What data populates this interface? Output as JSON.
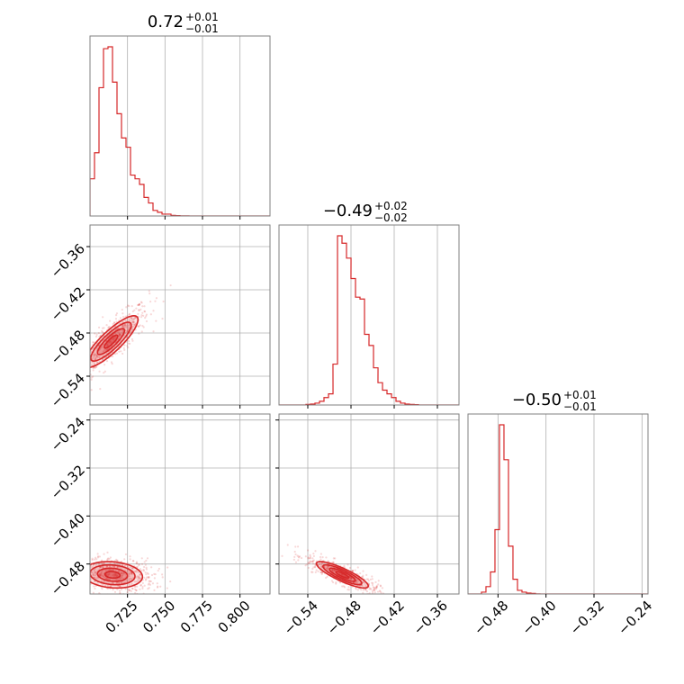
{
  "chart_data": {
    "type": "corner",
    "color": "#d62728",
    "grid": true,
    "parameters": [
      {
        "range": [
          0.7,
          0.82
        ],
        "ticks": [
          0.725,
          0.75,
          0.775,
          0.8
        ],
        "tick_labels": [
          "0.725",
          "0.750",
          "0.775",
          "0.800"
        ],
        "title": {
          "value": "0.72",
          "plus": "+0.01",
          "minus": "−0.01"
        },
        "hist": {
          "x": [
            0.7015,
            0.7045,
            0.7075,
            0.7105,
            0.7135,
            0.7165,
            0.7195,
            0.7225,
            0.7255,
            0.7285,
            0.7315,
            0.7345,
            0.7375,
            0.7405,
            0.7435,
            0.7465,
            0.7495,
            0.7525,
            0.7555,
            0.7585,
            0.7615,
            0.7645,
            0.7675,
            0.7705,
            0.7735,
            0.7765,
            0.7795,
            0.7825,
            0.7855,
            0.7885,
            0.7915,
            0.7945,
            0.7975,
            0.8005,
            0.8035,
            0.8065,
            0.8095,
            0.8125,
            0.8155,
            0.8185
          ],
          "counts": [
            0.2,
            0.34,
            0.69,
            0.9,
            0.91,
            0.72,
            0.55,
            0.42,
            0.37,
            0.22,
            0.2,
            0.17,
            0.1,
            0.07,
            0.03,
            0.02,
            0.01,
            0.01,
            0.003,
            0.002,
            0.001,
            0.001,
            0,
            0,
            0,
            0,
            0,
            0,
            0,
            0,
            0,
            0,
            0,
            0,
            0,
            0,
            0,
            0,
            0,
            0
          ]
        }
      },
      {
        "range": [
          -0.58,
          -0.33
        ],
        "ticks": [
          -0.54,
          -0.48,
          -0.42,
          -0.36
        ],
        "tick_labels": [
          "−0.54",
          "−0.48",
          "−0.42",
          "−0.36"
        ],
        "title": {
          "value": "−0.49",
          "plus": "+0.02",
          "minus": "−0.02"
        },
        "hist": {
          "x": [
            -0.5769,
            -0.5706,
            -0.5644,
            -0.5581,
            -0.5519,
            -0.5456,
            -0.5394,
            -0.5331,
            -0.5269,
            -0.5206,
            -0.5144,
            -0.5081,
            -0.5019,
            -0.4956,
            -0.4894,
            -0.4831,
            -0.4769,
            -0.4706,
            -0.4644,
            -0.4581,
            -0.4519,
            -0.4456,
            -0.4394,
            -0.4331,
            -0.4269,
            -0.4206,
            -0.4144,
            -0.4081,
            -0.4019,
            -0.3956,
            -0.3894,
            -0.3831,
            -0.3769,
            -0.3706,
            -0.3644,
            -0.3581,
            -0.3519,
            -0.3456,
            -0.3394,
            -0.3331
          ],
          "counts": [
            0,
            0,
            0,
            0,
            0,
            0,
            0.003,
            0.005,
            0.01,
            0.02,
            0.04,
            0.06,
            0.22,
            0.91,
            0.87,
            0.79,
            0.68,
            0.58,
            0.57,
            0.38,
            0.32,
            0.2,
            0.12,
            0.08,
            0.06,
            0.04,
            0.02,
            0.01,
            0.005,
            0.003,
            0.002,
            0,
            0,
            0,
            0,
            0,
            0,
            0,
            0,
            0
          ]
        }
      },
      {
        "range": [
          -0.53,
          -0.23
        ],
        "ticks": [
          -0.48,
          -0.4,
          -0.32,
          -0.24
        ],
        "tick_labels": [
          "−0.48",
          "−0.40",
          "−0.32",
          "−0.24"
        ],
        "title": {
          "value": "−0.50",
          "plus": "+0.01",
          "minus": "−0.01"
        },
        "hist": {
          "x": [
            -0.5263,
            -0.5188,
            -0.5113,
            -0.5038,
            -0.4963,
            -0.4888,
            -0.4813,
            -0.4738,
            -0.4663,
            -0.4588,
            -0.4513,
            -0.4438,
            -0.4363,
            -0.4288,
            -0.4213,
            -0.4138,
            -0.4063,
            -0.3988,
            -0.3913,
            -0.3838,
            -0.3763,
            -0.3688,
            -0.3613,
            -0.3538,
            -0.3463,
            -0.3388,
            -0.3313,
            -0.3238,
            -0.3163,
            -0.3088,
            -0.3013,
            -0.2938,
            -0.2863,
            -0.2788,
            -0.2713,
            -0.2638,
            -0.2563,
            -0.2488,
            -0.2413,
            -0.2338
          ],
          "counts": [
            0,
            0,
            0,
            0.01,
            0.04,
            0.12,
            0.35,
            0.92,
            0.73,
            0.26,
            0.08,
            0.02,
            0.01,
            0.005,
            0.003,
            0.001,
            0,
            0,
            0,
            0,
            0,
            0,
            0,
            0,
            0,
            0,
            0,
            0,
            0,
            0,
            0,
            0,
            0,
            0,
            0,
            0,
            0,
            0,
            0,
            0
          ]
        }
      }
    ],
    "pairs": [
      {
        "x_param": 0,
        "y_param": 1,
        "center": [
          0.714,
          -0.492
        ],
        "spread": [
          0.009,
          0.018
        ],
        "corr": 0.85,
        "contour_levels_sigma": [
          0.5,
          1.0,
          1.5,
          2.0
        ]
      },
      {
        "x_param": 0,
        "y_param": 2,
        "center": [
          0.715,
          -0.498
        ],
        "spread": [
          0.01,
          0.011
        ],
        "corr": -0.15,
        "contour_levels_sigma": [
          0.5,
          1.0,
          1.5,
          2.0
        ]
      },
      {
        "x_param": 1,
        "y_param": 2,
        "center": [
          -0.492,
          -0.498
        ],
        "spread": [
          0.018,
          0.011
        ],
        "corr": -0.85,
        "contour_levels_sigma": [
          0.5,
          1.0,
          1.5,
          2.0
        ]
      }
    ]
  }
}
